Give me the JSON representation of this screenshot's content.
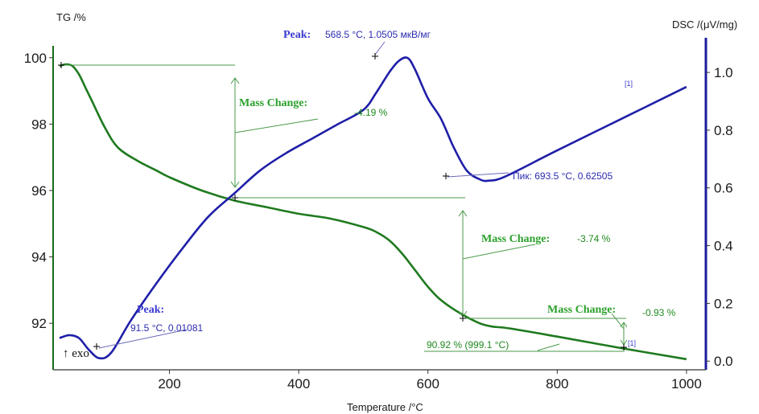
{
  "chart_data": {
    "type": "line",
    "xlabel": "Temperature /°C",
    "ylabel_left": "TG /%",
    "ylabel_right": "DSC /(μV/mg)",
    "xlim": [
      20,
      1030
    ],
    "ylim_left": [
      90.6,
      100.6
    ],
    "ylim_right": [
      -0.03,
      1.12
    ],
    "x_ticks": [
      200,
      400,
      600,
      800,
      1000
    ],
    "y_ticks_left": [
      92,
      94,
      96,
      98,
      100
    ],
    "y_ticks_right": [
      0.0,
      0.2,
      0.4,
      0.6,
      0.8,
      1.0
    ],
    "series": [
      {
        "axis": "left",
        "color": "#1f7a1f",
        "x": [
          30,
          40,
          50,
          60,
          70,
          80,
          100,
          120,
          150,
          180,
          200,
          250,
          300,
          350,
          400,
          450,
          500,
          520,
          540,
          560,
          580,
          600,
          620,
          650,
          680,
          700,
          725,
          800,
          900,
          1000
        ],
        "y": [
          99.75,
          99.8,
          99.75,
          99.5,
          99.1,
          98.7,
          97.9,
          97.3,
          96.9,
          96.6,
          96.4,
          96.0,
          95.7,
          95.5,
          95.3,
          95.15,
          94.9,
          94.75,
          94.5,
          94.1,
          93.6,
          93.1,
          92.7,
          92.3,
          92.0,
          91.9,
          91.85,
          91.6,
          91.25,
          90.92
        ]
      },
      {
        "axis": "right",
        "color": "#1f1fa8",
        "x": [
          30,
          45,
          60,
          75,
          91.5,
          110,
          140,
          180,
          220,
          260,
          300,
          340,
          380,
          420,
          460,
          500,
          520,
          540,
          555,
          568.5,
          580,
          600,
          620,
          640,
          660,
          680,
          693.5,
          720,
          800,
          900,
          1000
        ],
        "y": [
          0.08,
          0.09,
          0.08,
          0.04,
          0.01,
          0.03,
          0.14,
          0.27,
          0.39,
          0.5,
          0.58,
          0.66,
          0.72,
          0.77,
          0.82,
          0.87,
          0.93,
          1.0,
          1.04,
          1.05,
          1.01,
          0.91,
          0.84,
          0.74,
          0.66,
          0.63,
          0.625,
          0.64,
          0.73,
          0.84,
          0.95
        ]
      }
    ],
    "annotations": {
      "peak_top_label": "Peak:",
      "peak_top_value": "568.5 °C, 1.0505 мкВ/мг",
      "peak_low_label": "Peak:",
      "peak_low_value": "91.5 °C, 0.01081",
      "pik_label": "Пик: 693.5 °C, 0.62505",
      "mass_change_label": "Mass Change:",
      "mass_change_1": "-4.19 %",
      "mass_change_2": "-3.74 %",
      "mass_change_3": "-0.93 %",
      "residual": "90.92 % (999.1 °C)",
      "exo": "↑ exo",
      "curve_tag": "[1]"
    },
    "grid": false,
    "legend": "none"
  }
}
